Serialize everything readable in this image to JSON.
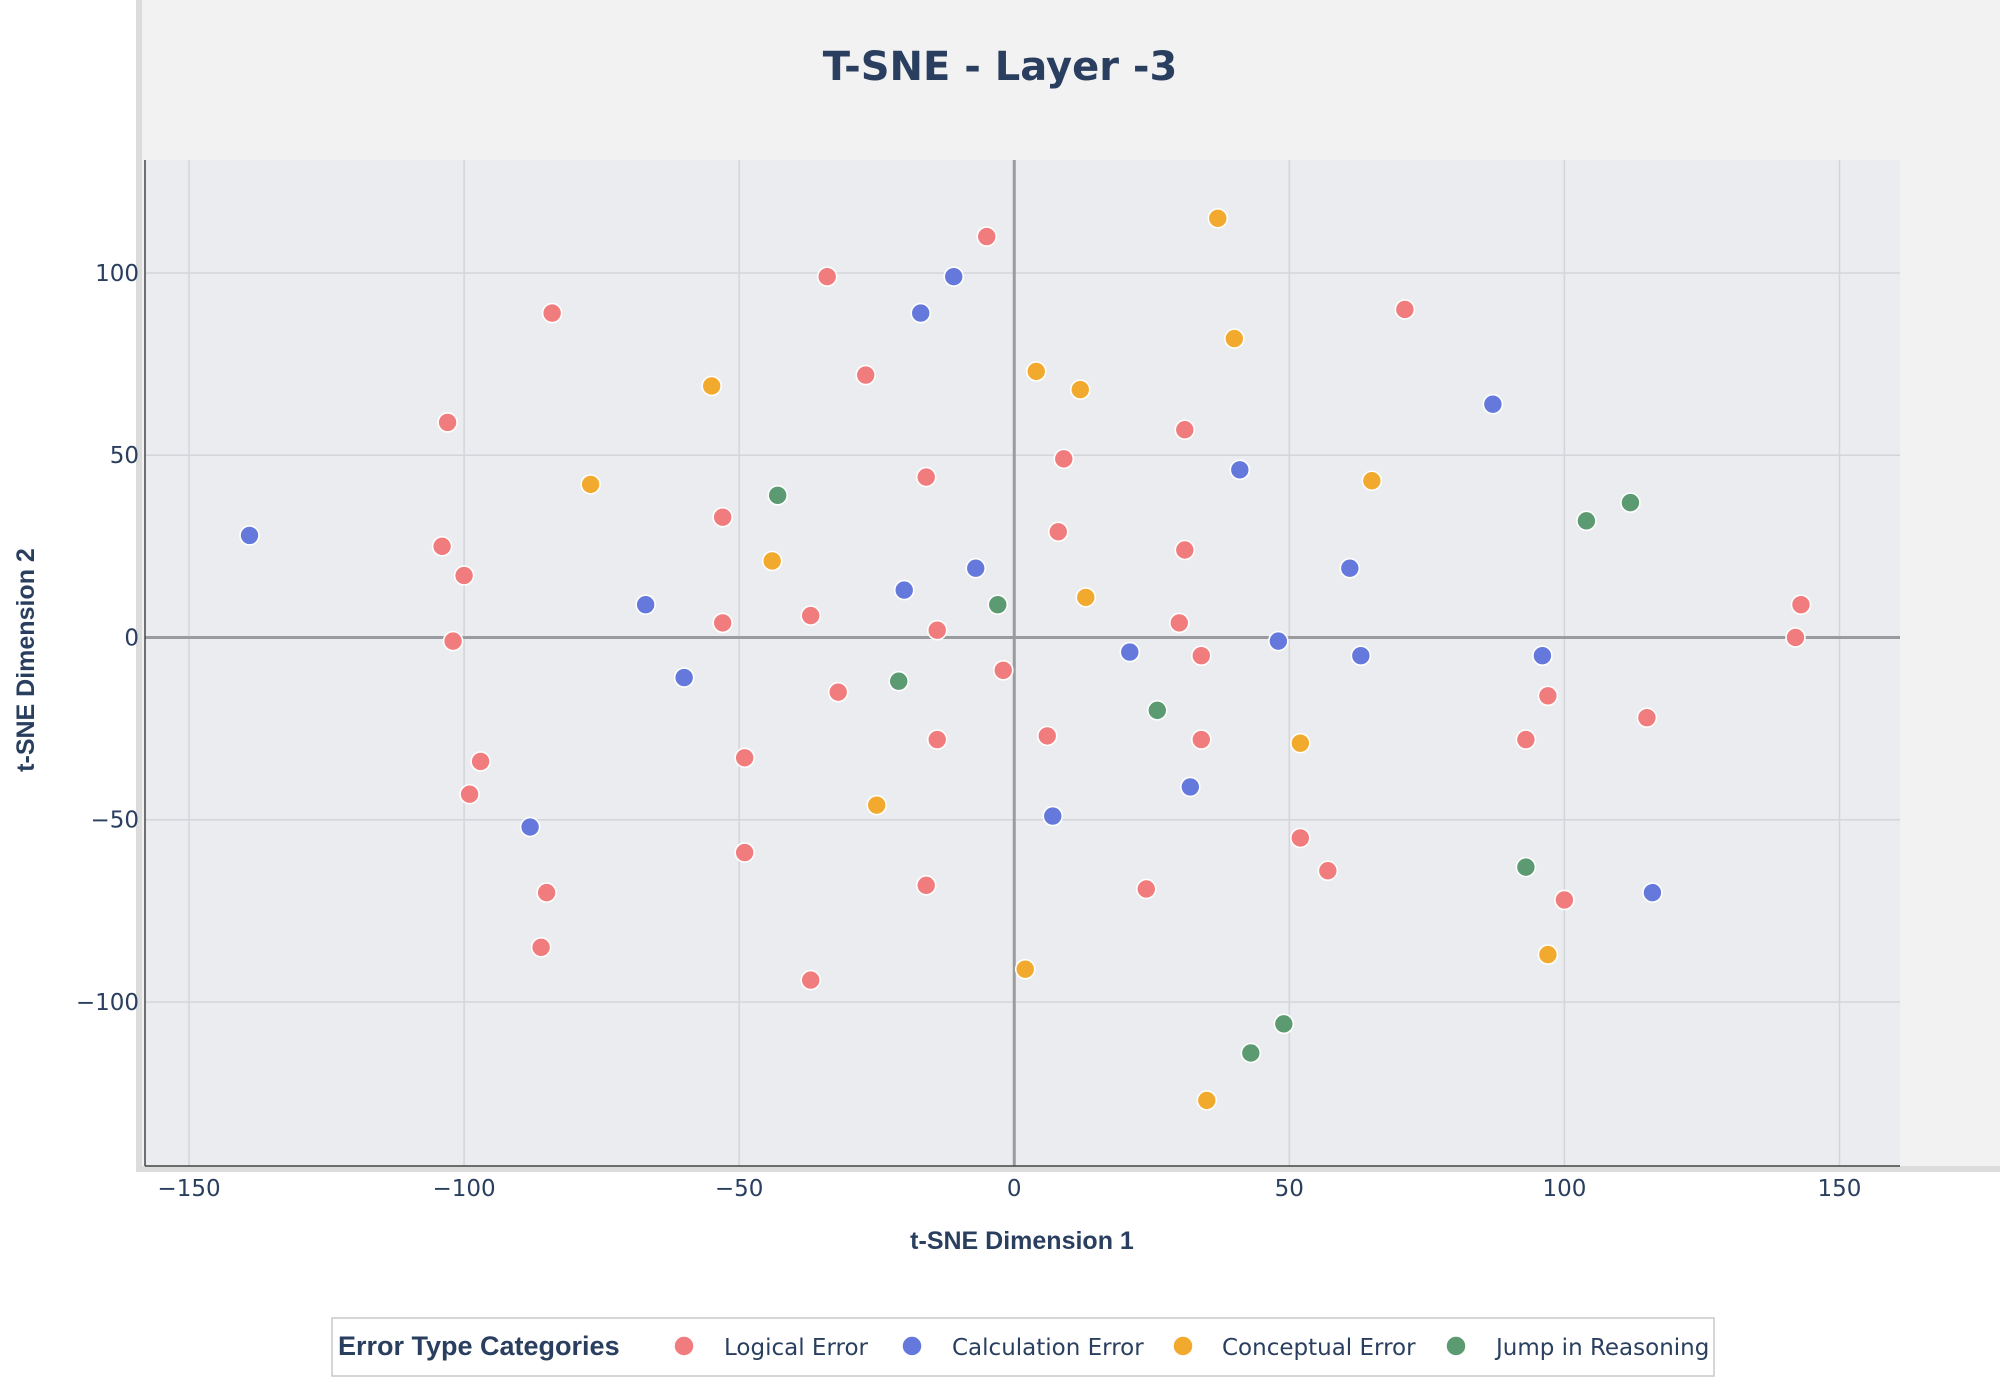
{
  "chart_data": {
    "type": "scatter",
    "title": "T-SNE - Layer -3",
    "xlabel": "t-SNE Dimension 1",
    "ylabel": "t-SNE Dimension 2",
    "xlim": [
      -158,
      161
    ],
    "ylim": [
      -145,
      131
    ],
    "xticks": [
      -150,
      -100,
      -50,
      0,
      50,
      100,
      150
    ],
    "yticks": [
      -100,
      -50,
      0,
      50,
      100
    ],
    "xtick_labels": [
      "−150",
      "−100",
      "−50",
      "0",
      "50",
      "100",
      "150"
    ],
    "ytick_labels": [
      "−100",
      "−50",
      "0",
      "50",
      "100"
    ],
    "grid": true,
    "legend": {
      "title": "Error Type Categories",
      "placement": "bottom-center",
      "orientation": "horizontal"
    },
    "colors": {
      "page_background": "#f2f2f2",
      "plot_background": "#ebecef",
      "grid": "#d3d5da",
      "zeroline": "#9a9b9e",
      "text": "#2a3f5f"
    },
    "series": [
      {
        "name": "Logical Error",
        "color": "#f07c7e",
        "points": [
          [
            -5,
            110
          ],
          [
            -34,
            99
          ],
          [
            -84,
            89
          ],
          [
            71,
            90
          ],
          [
            -27,
            72
          ],
          [
            -103,
            59
          ],
          [
            31,
            57
          ],
          [
            9,
            49
          ],
          [
            -16,
            44
          ],
          [
            -53,
            33
          ],
          [
            8,
            29
          ],
          [
            31,
            24
          ],
          [
            -104,
            25
          ],
          [
            -100,
            17
          ],
          [
            -53,
            4
          ],
          [
            -37,
            6
          ],
          [
            -14,
            2
          ],
          [
            30,
            4
          ],
          [
            143,
            9
          ],
          [
            142,
            0
          ],
          [
            -102,
            -1
          ],
          [
            34,
            -5
          ],
          [
            -2,
            -9
          ],
          [
            -32,
            -15
          ],
          [
            97,
            -16
          ],
          [
            115,
            -22
          ],
          [
            6,
            -27
          ],
          [
            -14,
            -28
          ],
          [
            34,
            -28
          ],
          [
            93,
            -28
          ],
          [
            -97,
            -34
          ],
          [
            -49,
            -33
          ],
          [
            -99,
            -43
          ],
          [
            52,
            -55
          ],
          [
            57,
            -64
          ],
          [
            -49,
            -59
          ],
          [
            -16,
            -68
          ],
          [
            24,
            -69
          ],
          [
            -85,
            -70
          ],
          [
            100,
            -72
          ],
          [
            -86,
            -85
          ],
          [
            -37,
            -94
          ]
        ]
      },
      {
        "name": "Calculation Error",
        "color": "#6479db",
        "points": [
          [
            -11,
            99
          ],
          [
            -17,
            89
          ],
          [
            87,
            64
          ],
          [
            41,
            46
          ],
          [
            -139,
            28
          ],
          [
            -7,
            19
          ],
          [
            61,
            19
          ],
          [
            -20,
            13
          ],
          [
            -67,
            9
          ],
          [
            48,
            -1
          ],
          [
            21,
            -4
          ],
          [
            63,
            -5
          ],
          [
            96,
            -5
          ],
          [
            -60,
            -11
          ],
          [
            32,
            -41
          ],
          [
            7,
            -49
          ],
          [
            -88,
            -52
          ],
          [
            116,
            -70
          ]
        ]
      },
      {
        "name": "Conceptual Error",
        "color": "#f2aa2e",
        "points": [
          [
            37,
            115
          ],
          [
            40,
            82
          ],
          [
            4,
            73
          ],
          [
            -55,
            69
          ],
          [
            12,
            68
          ],
          [
            -77,
            42
          ],
          [
            65,
            43
          ],
          [
            -44,
            21
          ],
          [
            13,
            11
          ],
          [
            52,
            -29
          ],
          [
            -25,
            -46
          ],
          [
            97,
            -87
          ],
          [
            2,
            -91
          ],
          [
            35,
            -127
          ]
        ]
      },
      {
        "name": "Jump in Reasoning",
        "color": "#5c9a72",
        "points": [
          [
            -43,
            39
          ],
          [
            112,
            37
          ],
          [
            104,
            32
          ],
          [
            -3,
            9
          ],
          [
            -21,
            -12
          ],
          [
            26,
            -20
          ],
          [
            93,
            -63
          ],
          [
            49,
            -106
          ],
          [
            43,
            -114
          ]
        ]
      }
    ]
  }
}
